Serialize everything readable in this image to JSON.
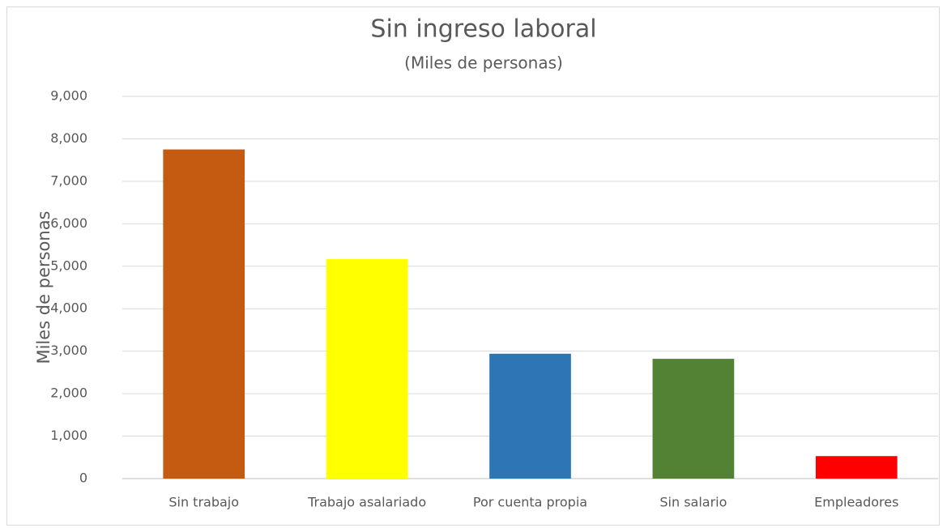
{
  "chart_data": {
    "type": "bar",
    "title": "Sin ingreso laboral",
    "subtitle": "(Miles de personas)",
    "y_label": "Miles de personas",
    "categories": [
      "Sin trabajo",
      "Trabajo asalariado",
      "Por cuenta propia",
      "Sin salario",
      "Empleadores"
    ],
    "values": [
      7750,
      5170,
      2940,
      2820,
      530
    ],
    "colors": [
      "#c55a11",
      "#ffff00",
      "#2e75b6",
      "#548235",
      "#ff0000"
    ],
    "ylim": [
      0,
      9000
    ],
    "yticks": [
      0,
      {
        "value": 1000,
        "label": "1,000"
      },
      {
        "value": 2000,
        "label": "2,000"
      },
      {
        "value": 3000,
        "label": "3,000"
      },
      {
        "value": 4000,
        "label": "4,000"
      },
      {
        "value": 5000,
        "label": "5,000"
      },
      {
        "value": 6000,
        "label": "6,000"
      },
      {
        "value": 7000,
        "label": "7,000"
      },
      {
        "value": 8000,
        "label": "8,000"
      },
      {
        "value": 9000,
        "label": "9,000"
      }
    ],
    "grid": true
  }
}
